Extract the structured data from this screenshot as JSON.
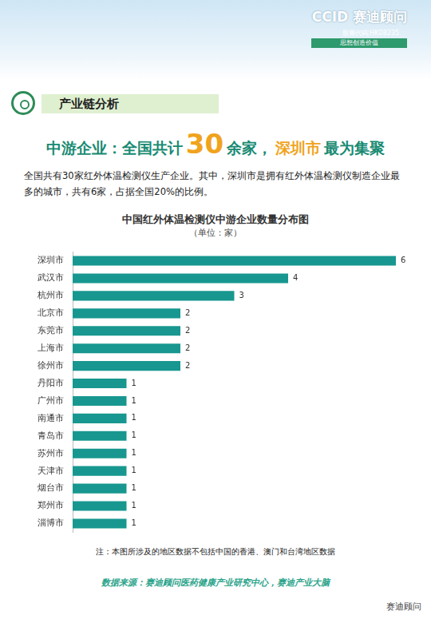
{
  "header": {
    "brand": "CCID 赛迪顾问",
    "stock_code": "股票代码:HK08235",
    "slogan": "思想创造价值"
  },
  "section": "产业链分析",
  "headline": [
    "中游企业：全国共计",
    "30",
    "余家，",
    "深圳市",
    "最为集聚"
  ],
  "intro": "全国共有30家红外体温检测仪生产企业。其中，深圳市是拥有红外体温检测仪制造企业最多的城市，共有6家，占据全国20%的比例。",
  "chart_data": {
    "type": "bar",
    "title": "中国红外体温检测仪中游企业数量分布图",
    "subtitle": "（单位：家）",
    "orientation": "horizontal",
    "categories": [
      "深圳市",
      "武汉市",
      "杭州市",
      "北京市",
      "东莞市",
      "上海市",
      "徐州市",
      "丹阳市",
      "广州市",
      "南通市",
      "青岛市",
      "苏州市",
      "天津市",
      "烟台市",
      "郑州市",
      "淄博市"
    ],
    "values": [
      6,
      4,
      3,
      2,
      2,
      2,
      2,
      1,
      1,
      1,
      1,
      1,
      1,
      1,
      1,
      1
    ],
    "color": "#17978f",
    "xlim": [
      0,
      6
    ],
    "grid": false,
    "data_labels": true,
    "tick_labels": "y",
    "legend": "none"
  },
  "note": "注：本图所涉及的地区数据不包括中国的香港、澳门和台湾地区数据",
  "source": "数据来源：赛迪顾问医药健康产业研究中心，赛迪产业大脑",
  "watermark": "赛迪顾问"
}
